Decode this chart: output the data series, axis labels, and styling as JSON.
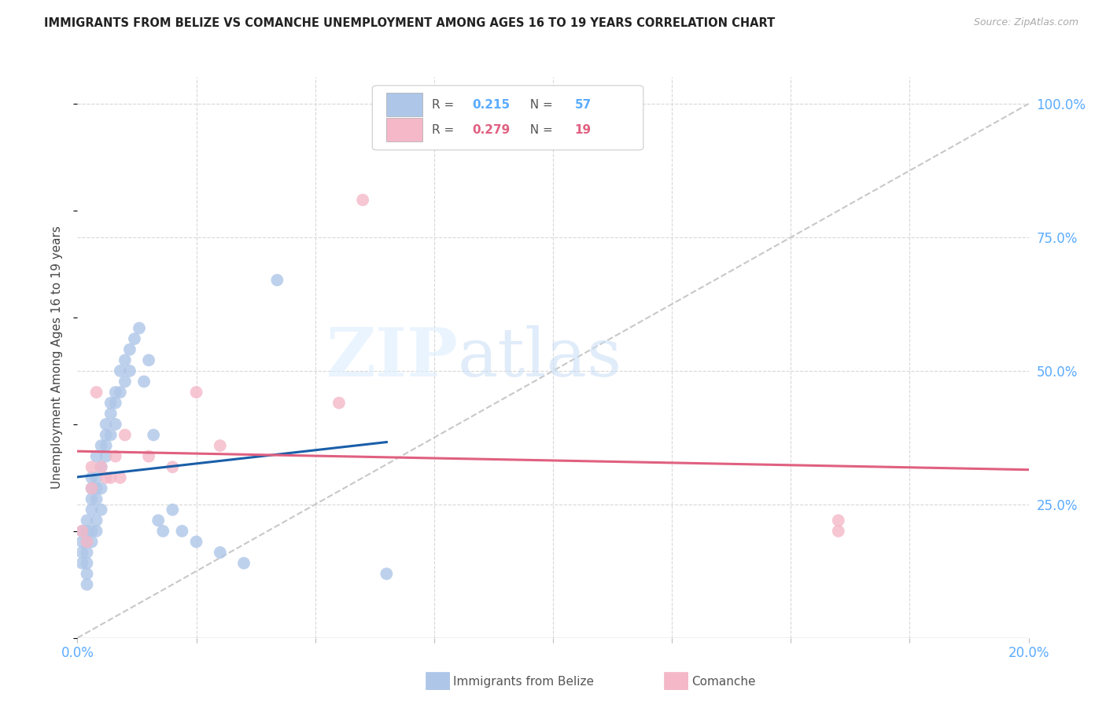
{
  "title": "IMMIGRANTS FROM BELIZE VS COMANCHE UNEMPLOYMENT AMONG AGES 16 TO 19 YEARS CORRELATION CHART",
  "source": "Source: ZipAtlas.com",
  "ylabel": "Unemployment Among Ages 16 to 19 years",
  "xlim": [
    0.0,
    0.2
  ],
  "ylim": [
    0.0,
    1.05
  ],
  "belize_R": "0.215",
  "belize_N": "57",
  "comanche_R": "0.279",
  "comanche_N": "19",
  "belize_color": "#aec6e8",
  "comanche_color": "#f4b8c8",
  "belize_line_color": "#1a5ea8",
  "comanche_line_color": "#e06080",
  "diagonal_color": "#c8c8c8",
  "watermark_zip": "ZIP",
  "watermark_atlas": "atlas",
  "accent_color": "#5aabff",
  "belize_x": [
    0.001,
    0.001,
    0.001,
    0.001,
    0.002,
    0.002,
    0.002,
    0.002,
    0.002,
    0.002,
    0.002,
    0.003,
    0.003,
    0.003,
    0.003,
    0.003,
    0.003,
    0.004,
    0.004,
    0.004,
    0.004,
    0.004,
    0.004,
    0.005,
    0.005,
    0.005,
    0.005,
    0.006,
    0.006,
    0.006,
    0.006,
    0.007,
    0.007,
    0.007,
    0.008,
    0.008,
    0.008,
    0.009,
    0.009,
    0.01,
    0.01,
    0.011,
    0.011,
    0.012,
    0.013,
    0.014,
    0.015,
    0.016,
    0.017,
    0.018,
    0.02,
    0.022,
    0.025,
    0.03,
    0.035,
    0.042,
    0.065
  ],
  "belize_y": [
    0.2,
    0.18,
    0.16,
    0.14,
    0.22,
    0.2,
    0.18,
    0.16,
    0.14,
    0.12,
    0.1,
    0.3,
    0.28,
    0.26,
    0.24,
    0.2,
    0.18,
    0.34,
    0.3,
    0.28,
    0.26,
    0.22,
    0.2,
    0.36,
    0.32,
    0.28,
    0.24,
    0.4,
    0.38,
    0.36,
    0.34,
    0.44,
    0.42,
    0.38,
    0.46,
    0.44,
    0.4,
    0.5,
    0.46,
    0.52,
    0.48,
    0.54,
    0.5,
    0.56,
    0.58,
    0.48,
    0.52,
    0.38,
    0.22,
    0.2,
    0.24,
    0.2,
    0.18,
    0.16,
    0.14,
    0.67,
    0.12
  ],
  "comanche_x": [
    0.001,
    0.002,
    0.003,
    0.003,
    0.004,
    0.005,
    0.006,
    0.007,
    0.008,
    0.009,
    0.01,
    0.015,
    0.02,
    0.025,
    0.03,
    0.055,
    0.06,
    0.16,
    0.16
  ],
  "comanche_y": [
    0.2,
    0.18,
    0.32,
    0.28,
    0.46,
    0.32,
    0.3,
    0.3,
    0.34,
    0.3,
    0.38,
    0.34,
    0.32,
    0.46,
    0.36,
    0.44,
    0.82,
    0.22,
    0.2
  ]
}
